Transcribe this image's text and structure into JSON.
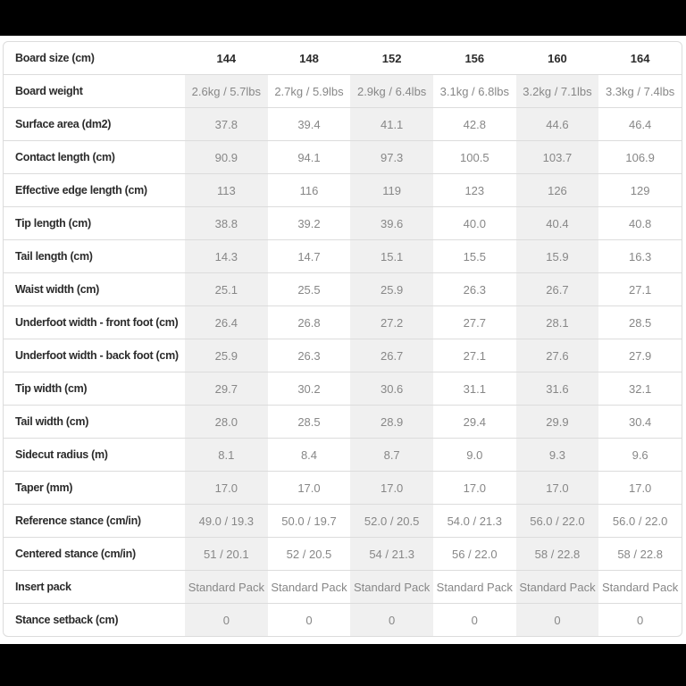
{
  "page": {
    "top_bar_color": "#000000",
    "bottom_bar_color": "#000000",
    "stripe_color": "#f0f0f0",
    "border_color": "#dcdcdc",
    "label_text_color": "#2b2b2b",
    "value_text_color": "#878787"
  },
  "spec_table": {
    "header": {
      "label": "Board size (cm)",
      "sizes": [
        "144",
        "148",
        "152",
        "156",
        "160",
        "164"
      ]
    },
    "rows": [
      {
        "label": "Board weight",
        "values": [
          "2.6kg / 5.7lbs",
          "2.7kg / 5.9lbs",
          "2.9kg / 6.4lbs",
          "3.1kg / 6.8lbs",
          "3.2kg / 7.1lbs",
          "3.3kg / 7.4lbs"
        ]
      },
      {
        "label": "Surface area (dm2)",
        "values": [
          "37.8",
          "39.4",
          "41.1",
          "42.8",
          "44.6",
          "46.4"
        ]
      },
      {
        "label": "Contact length (cm)",
        "values": [
          "90.9",
          "94.1",
          "97.3",
          "100.5",
          "103.7",
          "106.9"
        ]
      },
      {
        "label": "Effective edge length (cm)",
        "values": [
          "113",
          "116",
          "119",
          "123",
          "126",
          "129"
        ]
      },
      {
        "label": "Tip length (cm)",
        "values": [
          "38.8",
          "39.2",
          "39.6",
          "40.0",
          "40.4",
          "40.8"
        ]
      },
      {
        "label": "Tail length (cm)",
        "values": [
          "14.3",
          "14.7",
          "15.1",
          "15.5",
          "15.9",
          "16.3"
        ]
      },
      {
        "label": "Waist width (cm)",
        "values": [
          "25.1",
          "25.5",
          "25.9",
          "26.3",
          "26.7",
          "27.1"
        ]
      },
      {
        "label": "Underfoot width - front foot (cm)",
        "values": [
          "26.4",
          "26.8",
          "27.2",
          "27.7",
          "28.1",
          "28.5"
        ]
      },
      {
        "label": "Underfoot width - back foot (cm)",
        "values": [
          "25.9",
          "26.3",
          "26.7",
          "27.1",
          "27.6",
          "27.9"
        ]
      },
      {
        "label": "Tip width (cm)",
        "values": [
          "29.7",
          "30.2",
          "30.6",
          "31.1",
          "31.6",
          "32.1"
        ]
      },
      {
        "label": "Tail width (cm)",
        "values": [
          "28.0",
          "28.5",
          "28.9",
          "29.4",
          "29.9",
          "30.4"
        ]
      },
      {
        "label": "Sidecut radius (m)",
        "values": [
          "8.1",
          "8.4",
          "8.7",
          "9.0",
          "9.3",
          "9.6"
        ]
      },
      {
        "label": "Taper (mm)",
        "values": [
          "17.0",
          "17.0",
          "17.0",
          "17.0",
          "17.0",
          "17.0"
        ]
      },
      {
        "label": "Reference stance (cm/in)",
        "values": [
          "49.0 / 19.3",
          "50.0 / 19.7",
          "52.0 / 20.5",
          "54.0 / 21.3",
          "56.0 / 22.0",
          "56.0 / 22.0"
        ]
      },
      {
        "label": "Centered stance (cm/in)",
        "values": [
          "51 / 20.1",
          "52 / 20.5",
          "54 / 21.3",
          "56 / 22.0",
          "58 / 22.8",
          "58 / 22.8"
        ]
      },
      {
        "label": "Insert pack",
        "values": [
          "Standard Pack",
          "Standard Pack",
          "Standard Pack",
          "Standard Pack",
          "Standard Pack",
          "Standard Pack"
        ]
      },
      {
        "label": "Stance setback (cm)",
        "values": [
          "0",
          "0",
          "0",
          "0",
          "0",
          "0"
        ]
      }
    ]
  }
}
